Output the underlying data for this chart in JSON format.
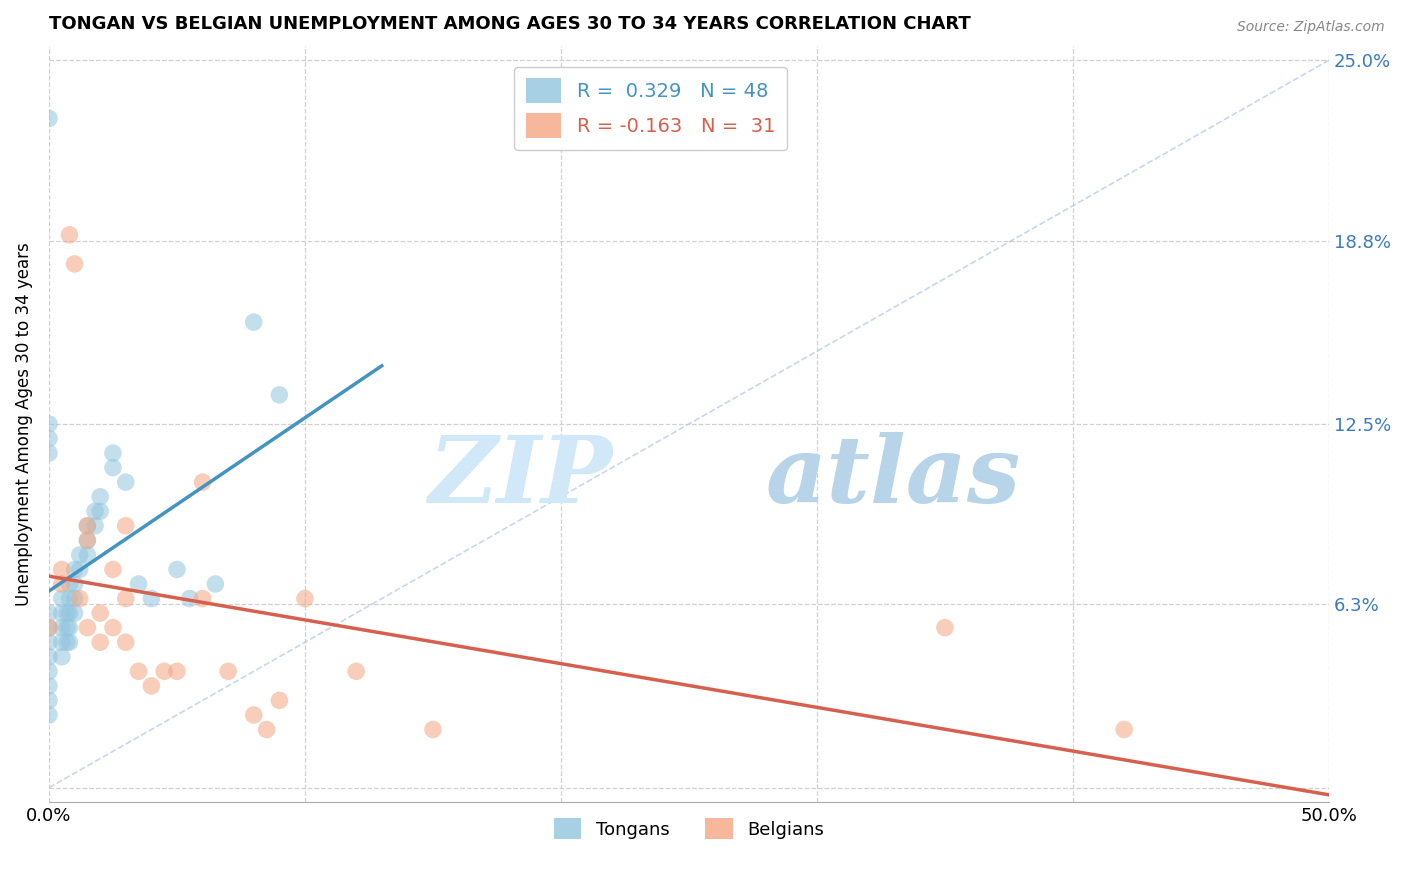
{
  "title": "TONGAN VS BELGIAN UNEMPLOYMENT AMONG AGES 30 TO 34 YEARS CORRELATION CHART",
  "source": "Source: ZipAtlas.com",
  "ylabel": "Unemployment Among Ages 30 to 34 years",
  "xlim": [
    0.0,
    0.5
  ],
  "ylim": [
    -0.005,
    0.255
  ],
  "ytick_vals": [
    0.0,
    0.063,
    0.125,
    0.188,
    0.25
  ],
  "ytick_labels": [
    "",
    "6.3%",
    "12.5%",
    "18.8%",
    "25.0%"
  ],
  "xtick_vals": [
    0.0,
    0.1,
    0.2,
    0.3,
    0.4,
    0.5
  ],
  "xtick_labels": [
    "0.0%",
    "",
    "",
    "",
    "",
    "50.0%"
  ],
  "legend_r_tongan": "R =  0.329   N = 48",
  "legend_r_belgian": "R = -0.163   N =  31",
  "tongan_color": "#92c5de",
  "belgian_color": "#f4a582",
  "tongan_line_color": "#4393c3",
  "belgian_line_color": "#d6604d",
  "diagonal_color": "#aec7e8",
  "tongan_x": [
    0.0,
    0.0,
    0.0,
    0.0,
    0.0,
    0.0,
    0.0,
    0.0,
    0.005,
    0.005,
    0.005,
    0.005,
    0.005,
    0.007,
    0.007,
    0.007,
    0.008,
    0.008,
    0.008,
    0.008,
    0.008,
    0.01,
    0.01,
    0.01,
    0.01,
    0.012,
    0.012,
    0.015,
    0.015,
    0.015,
    0.018,
    0.018,
    0.02,
    0.02,
    0.025,
    0.025,
    0.03,
    0.035,
    0.04,
    0.05,
    0.055,
    0.065,
    0.08,
    0.09,
    0.0,
    0.0,
    0.0,
    0.0
  ],
  "tongan_y": [
    0.06,
    0.055,
    0.05,
    0.045,
    0.04,
    0.035,
    0.03,
    0.025,
    0.065,
    0.06,
    0.055,
    0.05,
    0.045,
    0.06,
    0.055,
    0.05,
    0.07,
    0.065,
    0.06,
    0.055,
    0.05,
    0.075,
    0.07,
    0.065,
    0.06,
    0.08,
    0.075,
    0.09,
    0.085,
    0.08,
    0.095,
    0.09,
    0.1,
    0.095,
    0.115,
    0.11,
    0.105,
    0.07,
    0.065,
    0.075,
    0.065,
    0.07,
    0.16,
    0.135,
    0.12,
    0.115,
    0.125,
    0.23
  ],
  "belgian_x": [
    0.0,
    0.005,
    0.005,
    0.008,
    0.01,
    0.012,
    0.015,
    0.015,
    0.015,
    0.02,
    0.02,
    0.025,
    0.025,
    0.03,
    0.03,
    0.035,
    0.04,
    0.045,
    0.05,
    0.06,
    0.07,
    0.08,
    0.085,
    0.09,
    0.1,
    0.12,
    0.15,
    0.35,
    0.42,
    0.06,
    0.03
  ],
  "belgian_y": [
    0.055,
    0.075,
    0.07,
    0.19,
    0.18,
    0.065,
    0.09,
    0.085,
    0.055,
    0.06,
    0.05,
    0.075,
    0.055,
    0.065,
    0.05,
    0.04,
    0.035,
    0.04,
    0.04,
    0.065,
    0.04,
    0.025,
    0.02,
    0.03,
    0.065,
    0.04,
    0.02,
    0.055,
    0.02,
    0.105,
    0.09
  ],
  "watermark_zip": "ZIP",
  "watermark_atlas": "atlas",
  "background_color": "#ffffff",
  "grid_color": "#d0d0d0"
}
